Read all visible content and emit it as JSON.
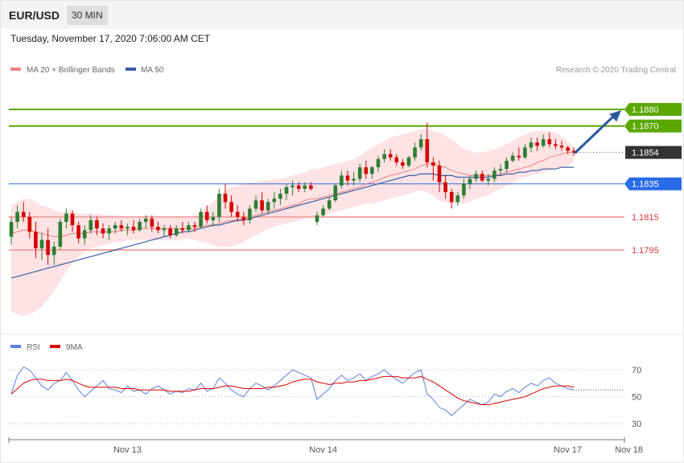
{
  "header": {
    "pair": "EUR/USD",
    "timeframe": "30 MIN",
    "datetime": "Tuesday, November 17, 2020 7:06:00 AM CET"
  },
  "price_legend": [
    {
      "label": "MA 20 + Bollinger Bands",
      "color": "#f08080"
    },
    {
      "label": "MA 50",
      "color": "#3a5ea8"
    }
  ],
  "copyright": "Research © 2020 Trading Central",
  "rsi_legend": [
    {
      "label": "RSI",
      "color": "#5b7fe0"
    },
    {
      "label": "9MA",
      "color": "#e00000"
    }
  ],
  "colors": {
    "resistance": "#5aa800",
    "pivot": "#2a6be8",
    "support": "#e2363a",
    "support_line": "#f4a6a8",
    "current_price": "#333333",
    "bollinger_fill": "#fde3e3",
    "candle_up": "#2e7d32",
    "candle_down": "#d50000",
    "arrow": "#2a5aa0"
  },
  "chart_data": [
    {
      "type": "candlestick",
      "name": "price",
      "ylim": [
        1.1742,
        1.19
      ],
      "levels": [
        {
          "value": 1.188,
          "label": "1.1880",
          "kind": "resistance"
        },
        {
          "value": 1.187,
          "label": "1.1870",
          "kind": "resistance"
        },
        {
          "value": 1.1854,
          "label": "1.1854",
          "kind": "current"
        },
        {
          "value": 1.1835,
          "label": "1.1835",
          "kind": "pivot"
        },
        {
          "value": 1.1815,
          "label": "1.1815",
          "kind": "support"
        },
        {
          "value": 1.1795,
          "label": "1.1795",
          "kind": "support"
        }
      ],
      "candles": [
        [
          1.1803,
          1.1815,
          1.1798,
          1.1812
        ],
        [
          1.1812,
          1.1822,
          1.1808,
          1.1818
        ],
        [
          1.1818,
          1.1824,
          1.1812,
          1.1815
        ],
        [
          1.1815,
          1.1818,
          1.1802,
          1.1806
        ],
        [
          1.1806,
          1.1812,
          1.179,
          1.1796
        ],
        [
          1.1796,
          1.1805,
          1.1789,
          1.1801
        ],
        [
          1.1801,
          1.1808,
          1.1786,
          1.1792
        ],
        [
          1.1792,
          1.18,
          1.1786,
          1.1797
        ],
        [
          1.1797,
          1.1814,
          1.1795,
          1.1812
        ],
        [
          1.1812,
          1.182,
          1.1808,
          1.1817
        ],
        [
          1.1817,
          1.1819,
          1.1806,
          1.181
        ],
        [
          1.181,
          1.1812,
          1.1799,
          1.1802
        ],
        [
          1.1802,
          1.181,
          1.1798,
          1.1807
        ],
        [
          1.1807,
          1.1816,
          1.1805,
          1.1813
        ],
        [
          1.1813,
          1.1815,
          1.1804,
          1.1808
        ],
        [
          1.1808,
          1.1811,
          1.1802,
          1.1805
        ],
        [
          1.1805,
          1.181,
          1.1801,
          1.1808
        ],
        [
          1.1808,
          1.1812,
          1.1805,
          1.181
        ],
        [
          1.181,
          1.1813,
          1.1806,
          1.1808
        ],
        [
          1.1808,
          1.1811,
          1.1804,
          1.1809
        ],
        [
          1.1809,
          1.1813,
          1.1805,
          1.1807
        ],
        [
          1.1807,
          1.1814,
          1.1806,
          1.1812
        ],
        [
          1.1812,
          1.1816,
          1.1808,
          1.1814
        ],
        [
          1.1814,
          1.1816,
          1.1806,
          1.1809
        ],
        [
          1.1809,
          1.1812,
          1.1805,
          1.1807
        ],
        [
          1.1807,
          1.181,
          1.1803,
          1.1808
        ],
        [
          1.1808,
          1.181,
          1.1802,
          1.1804
        ],
        [
          1.1804,
          1.181,
          1.1803,
          1.1808
        ],
        [
          1.1808,
          1.1812,
          1.1805,
          1.1807
        ],
        [
          1.1807,
          1.1812,
          1.1806,
          1.181
        ],
        [
          1.181,
          1.1812,
          1.1806,
          1.1809
        ],
        [
          1.1809,
          1.182,
          1.1808,
          1.1818
        ],
        [
          1.1818,
          1.1822,
          1.1811,
          1.1813
        ],
        [
          1.1813,
          1.1818,
          1.1809,
          1.1815
        ],
        [
          1.1815,
          1.1832,
          1.1812,
          1.1829
        ],
        [
          1.1829,
          1.1835,
          1.182,
          1.1824
        ],
        [
          1.1824,
          1.1828,
          1.1815,
          1.1818
        ],
        [
          1.1818,
          1.1822,
          1.1812,
          1.1815
        ],
        [
          1.1815,
          1.1818,
          1.181,
          1.1813
        ],
        [
          1.1813,
          1.1822,
          1.1811,
          1.182
        ],
        [
          1.182,
          1.1828,
          1.1818,
          1.1825
        ],
        [
          1.1825,
          1.183,
          1.1817,
          1.1819
        ],
        [
          1.1819,
          1.1826,
          1.1817,
          1.1824
        ],
        [
          1.1824,
          1.183,
          1.182,
          1.1826
        ],
        [
          1.1826,
          1.1832,
          1.1822,
          1.1829
        ],
        [
          1.1829,
          1.1835,
          1.1825,
          1.1833
        ],
        [
          1.1833,
          1.1837,
          1.1828,
          1.1834
        ],
        [
          1.1834,
          1.1836,
          1.183,
          1.1832
        ],
        [
          1.1832,
          1.1836,
          1.183,
          1.1834
        ],
        [
          1.1834,
          1.1836,
          1.1831,
          1.1832
        ],
        [
          1.1812,
          1.1818,
          1.181,
          1.1816
        ],
        [
          1.1816,
          1.1822,
          1.1815,
          1.182
        ],
        [
          1.182,
          1.1827,
          1.1819,
          1.1825
        ],
        [
          1.1825,
          1.1835,
          1.1824,
          1.1834
        ],
        [
          1.1834,
          1.1843,
          1.1832,
          1.184
        ],
        [
          1.184,
          1.1843,
          1.1834,
          1.1837
        ],
        [
          1.1837,
          1.1842,
          1.1834,
          1.1838
        ],
        [
          1.1838,
          1.1847,
          1.1836,
          1.1845
        ],
        [
          1.1845,
          1.1849,
          1.1838,
          1.1841
        ],
        [
          1.1841,
          1.1846,
          1.1838,
          1.1845
        ],
        [
          1.1845,
          1.1852,
          1.1842,
          1.185
        ],
        [
          1.185,
          1.1856,
          1.1848,
          1.1853
        ],
        [
          1.1853,
          1.1856,
          1.1849,
          1.1851
        ],
        [
          1.1851,
          1.1853,
          1.1846,
          1.1848
        ],
        [
          1.1848,
          1.185,
          1.1844,
          1.1846
        ],
        [
          1.1846,
          1.1852,
          1.1845,
          1.1851
        ],
        [
          1.1851,
          1.186,
          1.1849,
          1.1857
        ],
        [
          1.1857,
          1.1865,
          1.1855,
          1.1862
        ],
        [
          1.1862,
          1.1872,
          1.1845,
          1.1848
        ],
        [
          1.1848,
          1.1851,
          1.1837,
          1.1846
        ],
        [
          1.1846,
          1.1849,
          1.183,
          1.1836
        ],
        [
          1.1836,
          1.184,
          1.1826,
          1.183
        ],
        [
          1.183,
          1.1832,
          1.182,
          1.1824
        ],
        [
          1.1824,
          1.183,
          1.1822,
          1.1828
        ],
        [
          1.1828,
          1.1838,
          1.1826,
          1.1835
        ],
        [
          1.1835,
          1.184,
          1.1832,
          1.1838
        ],
        [
          1.1838,
          1.1843,
          1.1836,
          1.1841
        ],
        [
          1.1841,
          1.1843,
          1.1836,
          1.1837
        ],
        [
          1.1837,
          1.1841,
          1.1834,
          1.1838
        ],
        [
          1.1838,
          1.1845,
          1.1836,
          1.1843
        ],
        [
          1.1843,
          1.1847,
          1.184,
          1.1844
        ],
        [
          1.1844,
          1.1851,
          1.1842,
          1.1849
        ],
        [
          1.1849,
          1.1854,
          1.1848,
          1.1852
        ],
        [
          1.1852,
          1.1857,
          1.1849,
          1.1851
        ],
        [
          1.1851,
          1.1859,
          1.185,
          1.1857
        ],
        [
          1.1857,
          1.1863,
          1.1854,
          1.186
        ],
        [
          1.186,
          1.1863,
          1.1855,
          1.1858
        ],
        [
          1.1858,
          1.1865,
          1.1857,
          1.1862
        ],
        [
          1.1862,
          1.1866,
          1.1857,
          1.1859
        ],
        [
          1.1859,
          1.1862,
          1.1856,
          1.1858
        ],
        [
          1.1858,
          1.1861,
          1.1855,
          1.1857
        ],
        [
          1.1857,
          1.1858,
          1.1853,
          1.1855
        ],
        [
          1.1855,
          1.1857,
          1.1852,
          1.1854
        ]
      ],
      "ma20": [
        1.1805,
        1.1806,
        1.1807,
        1.1807,
        1.1806,
        1.1805,
        1.1804,
        1.1803,
        1.1803,
        1.1804,
        1.1805,
        1.1805,
        1.1805,
        1.1806,
        1.1806,
        1.1806,
        1.1806,
        1.1806,
        1.1807,
        1.1807,
        1.1807,
        1.1808,
        1.1808,
        1.1808,
        1.1808,
        1.1808,
        1.1808,
        1.1808,
        1.1808,
        1.1808,
        1.1808,
        1.1809,
        1.181,
        1.181,
        1.1811,
        1.1812,
        1.1813,
        1.1813,
        1.1814,
        1.1815,
        1.1816,
        1.1817,
        1.1818,
        1.1819,
        1.182,
        1.1821,
        1.1822,
        1.1823,
        1.1825,
        1.1826,
        1.1826,
        1.1827,
        1.1828,
        1.1829,
        1.183,
        1.1831,
        1.1832,
        1.1833,
        1.1835,
        1.1836,
        1.1837,
        1.1839,
        1.184,
        1.1841,
        1.1842,
        1.1843,
        1.1844,
        1.1846,
        1.1847,
        1.1847,
        1.1846,
        1.1845,
        1.1843,
        1.1842,
        1.1841,
        1.184,
        1.184,
        1.184,
        1.184,
        1.184,
        1.1841,
        1.1842,
        1.1843,
        1.1844,
        1.1845,
        1.1846,
        1.1848,
        1.1849,
        1.1851,
        1.1852,
        1.1853,
        1.1854,
        1.1854
      ],
      "upper_band": [
        1.1822,
        1.1824,
        1.1826,
        1.1826,
        1.1824,
        1.1822,
        1.1821,
        1.1819,
        1.1818,
        1.1818,
        1.1818,
        1.1817,
        1.1817,
        1.1817,
        1.1817,
        1.1816,
        1.1816,
        1.1816,
        1.1815,
        1.1815,
        1.1815,
        1.1815,
        1.1815,
        1.1815,
        1.1815,
        1.1815,
        1.1815,
        1.1815,
        1.1815,
        1.1815,
        1.1816,
        1.1818,
        1.1821,
        1.1824,
        1.1828,
        1.1831,
        1.1833,
        1.1834,
        1.1835,
        1.1836,
        1.1836,
        1.1837,
        1.1837,
        1.1838,
        1.1838,
        1.1839,
        1.184,
        1.1841,
        1.1842,
        1.1844,
        1.1844,
        1.1845,
        1.1846,
        1.1847,
        1.1848,
        1.1849,
        1.185,
        1.1852,
        1.1855,
        1.1857,
        1.1859,
        1.1861,
        1.1863,
        1.1864,
        1.1865,
        1.1866,
        1.1867,
        1.1868,
        1.1868,
        1.1867,
        1.1866,
        1.1864,
        1.1862,
        1.1859,
        1.1856,
        1.1855,
        1.1854,
        1.1854,
        1.1855,
        1.1856,
        1.1857,
        1.1859,
        1.1861,
        1.1863,
        1.1865,
        1.1866,
        1.1867,
        1.1867,
        1.1867,
        1.1866,
        1.1864,
        1.1861,
        1.1857
      ],
      "lower_band": [
        1.1758,
        1.1756,
        1.1755,
        1.1756,
        1.1758,
        1.1761,
        1.1765,
        1.177,
        1.1776,
        1.1782,
        1.1787,
        1.1791,
        1.1794,
        1.1796,
        1.1797,
        1.1798,
        1.1799,
        1.18,
        1.18,
        1.1801,
        1.1801,
        1.1801,
        1.1801,
        1.1801,
        1.1801,
        1.1801,
        1.1801,
        1.1801,
        1.1801,
        1.1802,
        1.1801,
        1.18,
        1.1799,
        1.1798,
        1.1797,
        1.1797,
        1.1797,
        1.1798,
        1.18,
        1.1802,
        1.1804,
        1.1806,
        1.1808,
        1.1809,
        1.181,
        1.1811,
        1.1812,
        1.1813,
        1.1814,
        1.1815,
        1.1815,
        1.1816,
        1.1817,
        1.1818,
        1.1819,
        1.182,
        1.1821,
        1.1822,
        1.1823,
        1.1823,
        1.1824,
        1.1825,
        1.1826,
        1.1827,
        1.1828,
        1.1829,
        1.183,
        1.1831,
        1.183,
        1.1828,
        1.1825,
        1.1824,
        1.1823,
        1.1823,
        1.1823,
        1.1824,
        1.1826,
        1.1827,
        1.1828,
        1.183,
        1.1832,
        1.1834,
        1.1836,
        1.1838,
        1.1839,
        1.184,
        1.1841,
        1.1842,
        1.1843,
        1.1844,
        1.1845,
        1.1846,
        1.1848
      ],
      "ma50": [
        1.1778,
        1.1779,
        1.178,
        1.1781,
        1.1782,
        1.1783,
        1.1784,
        1.1785,
        1.1786,
        1.1787,
        1.1788,
        1.1789,
        1.179,
        1.1791,
        1.1792,
        1.1793,
        1.1794,
        1.1795,
        1.1796,
        1.1797,
        1.1798,
        1.1799,
        1.18,
        1.1801,
        1.1802,
        1.1803,
        1.1804,
        1.1805,
        1.1806,
        1.1806,
        1.1807,
        1.1808,
        1.1809,
        1.181,
        1.181,
        1.1811,
        1.1812,
        1.1813,
        1.1813,
        1.1814,
        1.1815,
        1.1816,
        1.1817,
        1.1818,
        1.1819,
        1.182,
        1.1821,
        1.1822,
        1.1823,
        1.1824,
        1.1825,
        1.1826,
        1.1827,
        1.1828,
        1.1829,
        1.183,
        1.1831,
        1.1832,
        1.1833,
        1.1834,
        1.1835,
        1.1836,
        1.1837,
        1.1838,
        1.1839,
        1.184,
        1.184,
        1.1841,
        1.1841,
        1.1841,
        1.184,
        1.184,
        1.184,
        1.1839,
        1.1839,
        1.1839,
        1.1839,
        1.1839,
        1.1839,
        1.184,
        1.184,
        1.1841,
        1.1841,
        1.1842,
        1.1842,
        1.1843,
        1.1843,
        1.1844,
        1.1844,
        1.1844,
        1.1845,
        1.1845,
        1.1845
      ],
      "projection": {
        "from": 1.1854,
        "to": 1.188
      }
    },
    {
      "type": "line",
      "name": "rsi",
      "ylim": [
        18,
        82
      ],
      "yticks": [
        {
          "value": 70,
          "label": "70"
        },
        {
          "value": 50,
          "label": "50"
        },
        {
          "value": 30,
          "label": "30"
        }
      ],
      "xticks": [
        {
          "index": 19,
          "label": "Nov 13"
        },
        {
          "index": 51,
          "label": "Nov 14"
        },
        {
          "index": 91,
          "label": "Nov 17"
        },
        {
          "index": 101,
          "label": "Nov 18"
        }
      ],
      "rsi": [
        52,
        66,
        72,
        70,
        64,
        58,
        55,
        60,
        62,
        68,
        62,
        55,
        50,
        54,
        58,
        62,
        56,
        55,
        53,
        58,
        54,
        55,
        52,
        56,
        58,
        55,
        52,
        54,
        53,
        56,
        55,
        60,
        54,
        56,
        64,
        60,
        55,
        52,
        50,
        56,
        60,
        58,
        55,
        58,
        62,
        66,
        70,
        68,
        66,
        64,
        48,
        52,
        56,
        62,
        66,
        62,
        64,
        67,
        62,
        65,
        67,
        70,
        66,
        63,
        60,
        64,
        68,
        70,
        52,
        48,
        42,
        40,
        36,
        40,
        44,
        48,
        46,
        44,
        46,
        52,
        50,
        54,
        56,
        53,
        57,
        60,
        58,
        62,
        64,
        60,
        58,
        56,
        55
      ],
      "ma9": [
        52,
        56,
        60,
        62,
        63,
        63,
        62,
        62,
        62,
        63,
        62,
        60,
        58,
        57,
        57,
        57,
        57,
        57,
        56,
        56,
        56,
        55,
        55,
        55,
        55,
        55,
        54,
        54,
        54,
        54,
        55,
        56,
        56,
        56,
        57,
        58,
        58,
        57,
        56,
        56,
        56,
        56,
        57,
        57,
        58,
        59,
        61,
        62,
        63,
        63,
        61,
        60,
        59,
        60,
        60,
        61,
        61,
        62,
        62,
        63,
        64,
        65,
        65,
        65,
        64,
        64,
        64,
        65,
        63,
        61,
        58,
        55,
        52,
        49,
        47,
        46,
        45,
        44,
        44,
        45,
        46,
        47,
        48,
        49,
        50,
        52,
        54,
        56,
        57,
        58,
        58,
        58,
        57
      ]
    }
  ]
}
